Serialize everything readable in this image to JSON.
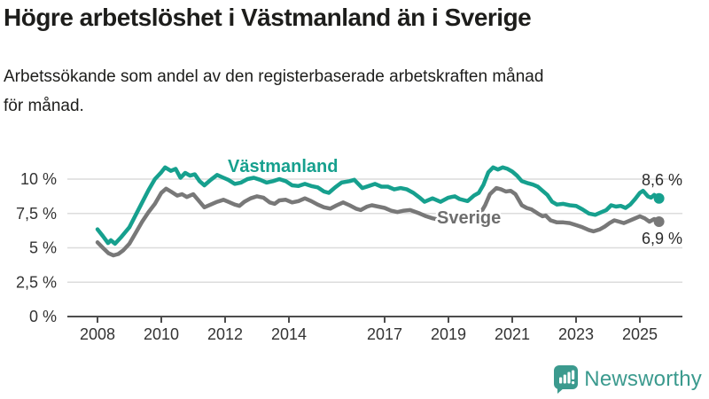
{
  "title": "Högre arbetslöshet i Västmanland än i Sverige",
  "subtitle_lines": [
    "Arbetssökande som andel av den registerbaserade arbetskraften månad",
    "för månad."
  ],
  "logo": {
    "text": "Newsworthy"
  },
  "colors": {
    "title": "#1d1d1b",
    "vastmanland": "#16a08e",
    "sverige": "#787878",
    "sverige_label": "#6e6e6e",
    "grid": "#dcdcdc",
    "axis": "#4d4d4d",
    "tick_text": "#333333",
    "end_label_text": "#2b2b2b",
    "logo": "#3b9a8e"
  },
  "chart_data": {
    "type": "line",
    "title": "Högre arbetslöshet i Västmanland än i Sverige",
    "subtitle": "Arbetssökande som andel av den registerbaserade arbetskraften månad för månad.",
    "xlabel": "",
    "ylabel": "",
    "grid": "horizontal",
    "legend_position": "inline",
    "x_axis": {
      "ticks": [
        2008,
        2010,
        2012,
        2014,
        2017,
        2019,
        2021,
        2023,
        2025
      ],
      "range": [
        2007.95,
        2026.3
      ]
    },
    "y_axis": {
      "tick_values": [
        0,
        2.5,
        5,
        7.5,
        10
      ],
      "tick_labels": [
        "0 %",
        "2,5 %",
        "5 %",
        "7,5 %",
        "10 %"
      ],
      "range": [
        0,
        11.6
      ]
    },
    "series": [
      {
        "id": "vastmanland",
        "name": "Västmanland",
        "end_label": "8,6 %",
        "end_value": 8.6,
        "color_key": "vastmanland",
        "points": [
          [
            2008.0,
            6.35
          ],
          [
            2008.17,
            5.85
          ],
          [
            2008.33,
            5.35
          ],
          [
            2008.42,
            5.55
          ],
          [
            2008.55,
            5.3
          ],
          [
            2008.75,
            5.8
          ],
          [
            2009.0,
            6.5
          ],
          [
            2009.2,
            7.4
          ],
          [
            2009.4,
            8.3
          ],
          [
            2009.6,
            9.2
          ],
          [
            2009.8,
            10.0
          ],
          [
            2010.0,
            10.5
          ],
          [
            2010.12,
            10.85
          ],
          [
            2010.3,
            10.6
          ],
          [
            2010.45,
            10.75
          ],
          [
            2010.6,
            10.1
          ],
          [
            2010.75,
            10.45
          ],
          [
            2010.9,
            10.25
          ],
          [
            2011.05,
            10.35
          ],
          [
            2011.2,
            9.85
          ],
          [
            2011.35,
            9.55
          ],
          [
            2011.55,
            9.95
          ],
          [
            2011.75,
            10.3
          ],
          [
            2011.95,
            10.1
          ],
          [
            2012.1,
            9.95
          ],
          [
            2012.3,
            9.65
          ],
          [
            2012.5,
            9.75
          ],
          [
            2012.7,
            10.0
          ],
          [
            2012.9,
            10.1
          ],
          [
            2013.1,
            9.95
          ],
          [
            2013.3,
            9.75
          ],
          [
            2013.5,
            9.85
          ],
          [
            2013.7,
            10.0
          ],
          [
            2013.9,
            9.85
          ],
          [
            2014.1,
            9.55
          ],
          [
            2014.3,
            9.5
          ],
          [
            2014.5,
            9.65
          ],
          [
            2014.7,
            9.5
          ],
          [
            2014.9,
            9.4
          ],
          [
            2015.1,
            9.1
          ],
          [
            2015.25,
            9.0
          ],
          [
            2015.45,
            9.4
          ],
          [
            2015.65,
            9.75
          ],
          [
            2015.9,
            9.85
          ],
          [
            2016.05,
            9.95
          ],
          [
            2016.3,
            9.35
          ],
          [
            2016.5,
            9.5
          ],
          [
            2016.7,
            9.65
          ],
          [
            2016.9,
            9.45
          ],
          [
            2017.1,
            9.45
          ],
          [
            2017.3,
            9.25
          ],
          [
            2017.5,
            9.35
          ],
          [
            2017.7,
            9.25
          ],
          [
            2017.9,
            9.0
          ],
          [
            2018.1,
            8.65
          ],
          [
            2018.25,
            8.35
          ],
          [
            2018.5,
            8.6
          ],
          [
            2018.75,
            8.35
          ],
          [
            2019.0,
            8.65
          ],
          [
            2019.2,
            8.75
          ],
          [
            2019.35,
            8.55
          ],
          [
            2019.6,
            8.4
          ],
          [
            2019.8,
            8.8
          ],
          [
            2019.95,
            9.0
          ],
          [
            2020.1,
            9.6
          ],
          [
            2020.25,
            10.5
          ],
          [
            2020.4,
            10.85
          ],
          [
            2020.55,
            10.7
          ],
          [
            2020.7,
            10.85
          ],
          [
            2020.85,
            10.75
          ],
          [
            2021.0,
            10.55
          ],
          [
            2021.15,
            10.25
          ],
          [
            2021.3,
            9.85
          ],
          [
            2021.5,
            9.7
          ],
          [
            2021.65,
            9.6
          ],
          [
            2021.8,
            9.45
          ],
          [
            2021.95,
            9.15
          ],
          [
            2022.1,
            8.85
          ],
          [
            2022.25,
            8.35
          ],
          [
            2022.4,
            8.15
          ],
          [
            2022.6,
            8.2
          ],
          [
            2022.8,
            8.1
          ],
          [
            2023.0,
            8.05
          ],
          [
            2023.2,
            7.8
          ],
          [
            2023.4,
            7.5
          ],
          [
            2023.6,
            7.4
          ],
          [
            2023.8,
            7.6
          ],
          [
            2023.95,
            7.75
          ],
          [
            2024.1,
            8.1
          ],
          [
            2024.25,
            8.0
          ],
          [
            2024.4,
            8.05
          ],
          [
            2024.55,
            7.9
          ],
          [
            2024.7,
            8.15
          ],
          [
            2024.85,
            8.55
          ],
          [
            2025.0,
            9.0
          ],
          [
            2025.1,
            9.15
          ],
          [
            2025.25,
            8.75
          ],
          [
            2025.35,
            8.65
          ],
          [
            2025.45,
            8.85
          ],
          [
            2025.6,
            8.6
          ]
        ]
      },
      {
        "id": "sverige",
        "name": "Sverige",
        "end_label": "6,9 %",
        "end_value": 6.9,
        "color_key": "sverige",
        "points": [
          [
            2008.0,
            5.4
          ],
          [
            2008.17,
            5.0
          ],
          [
            2008.35,
            4.6
          ],
          [
            2008.5,
            4.45
          ],
          [
            2008.65,
            4.55
          ],
          [
            2008.8,
            4.8
          ],
          [
            2009.0,
            5.3
          ],
          [
            2009.2,
            6.1
          ],
          [
            2009.4,
            6.9
          ],
          [
            2009.6,
            7.6
          ],
          [
            2009.8,
            8.2
          ],
          [
            2010.0,
            9.0
          ],
          [
            2010.15,
            9.3
          ],
          [
            2010.3,
            9.1
          ],
          [
            2010.5,
            8.8
          ],
          [
            2010.65,
            8.9
          ],
          [
            2010.8,
            8.7
          ],
          [
            2011.0,
            8.9
          ],
          [
            2011.15,
            8.5
          ],
          [
            2011.35,
            7.95
          ],
          [
            2011.55,
            8.15
          ],
          [
            2011.75,
            8.35
          ],
          [
            2011.95,
            8.5
          ],
          [
            2012.1,
            8.35
          ],
          [
            2012.3,
            8.15
          ],
          [
            2012.45,
            8.05
          ],
          [
            2012.6,
            8.35
          ],
          [
            2012.8,
            8.6
          ],
          [
            2013.0,
            8.75
          ],
          [
            2013.2,
            8.65
          ],
          [
            2013.4,
            8.3
          ],
          [
            2013.55,
            8.2
          ],
          [
            2013.7,
            8.45
          ],
          [
            2013.9,
            8.5
          ],
          [
            2014.1,
            8.3
          ],
          [
            2014.3,
            8.4
          ],
          [
            2014.5,
            8.6
          ],
          [
            2014.7,
            8.4
          ],
          [
            2014.9,
            8.15
          ],
          [
            2015.1,
            7.95
          ],
          [
            2015.3,
            7.85
          ],
          [
            2015.5,
            8.1
          ],
          [
            2015.7,
            8.3
          ],
          [
            2015.9,
            8.1
          ],
          [
            2016.1,
            7.85
          ],
          [
            2016.25,
            7.75
          ],
          [
            2016.45,
            8.0
          ],
          [
            2016.6,
            8.1
          ],
          [
            2016.8,
            8.0
          ],
          [
            2017.0,
            7.9
          ],
          [
            2017.2,
            7.7
          ],
          [
            2017.4,
            7.6
          ],
          [
            2017.6,
            7.7
          ],
          [
            2017.8,
            7.75
          ],
          [
            2018.1,
            7.5
          ],
          [
            2018.3,
            7.3
          ],
          [
            2018.5,
            7.15
          ],
          [
            2018.8,
            7.0
          ],
          [
            2019.0,
            7.0
          ],
          [
            2019.2,
            7.05
          ],
          [
            2019.4,
            6.95
          ],
          [
            2019.6,
            7.1
          ],
          [
            2019.8,
            7.25
          ],
          [
            2020.0,
            7.5
          ],
          [
            2020.15,
            8.1
          ],
          [
            2020.3,
            8.9
          ],
          [
            2020.5,
            9.35
          ],
          [
            2020.65,
            9.25
          ],
          [
            2020.8,
            9.1
          ],
          [
            2020.95,
            9.15
          ],
          [
            2021.1,
            8.9
          ],
          [
            2021.2,
            8.5
          ],
          [
            2021.3,
            8.1
          ],
          [
            2021.45,
            7.9
          ],
          [
            2021.6,
            7.8
          ],
          [
            2021.8,
            7.5
          ],
          [
            2021.95,
            7.3
          ],
          [
            2022.05,
            7.35
          ],
          [
            2022.2,
            7.0
          ],
          [
            2022.4,
            6.85
          ],
          [
            2022.6,
            6.85
          ],
          [
            2022.8,
            6.8
          ],
          [
            2023.0,
            6.65
          ],
          [
            2023.2,
            6.5
          ],
          [
            2023.4,
            6.3
          ],
          [
            2023.55,
            6.2
          ],
          [
            2023.75,
            6.35
          ],
          [
            2023.9,
            6.55
          ],
          [
            2024.05,
            6.8
          ],
          [
            2024.2,
            7.0
          ],
          [
            2024.35,
            6.9
          ],
          [
            2024.5,
            6.8
          ],
          [
            2024.65,
            6.95
          ],
          [
            2024.8,
            7.1
          ],
          [
            2025.0,
            7.3
          ],
          [
            2025.15,
            7.15
          ],
          [
            2025.3,
            6.9
          ],
          [
            2025.45,
            7.1
          ],
          [
            2025.6,
            6.9
          ]
        ]
      }
    ]
  }
}
